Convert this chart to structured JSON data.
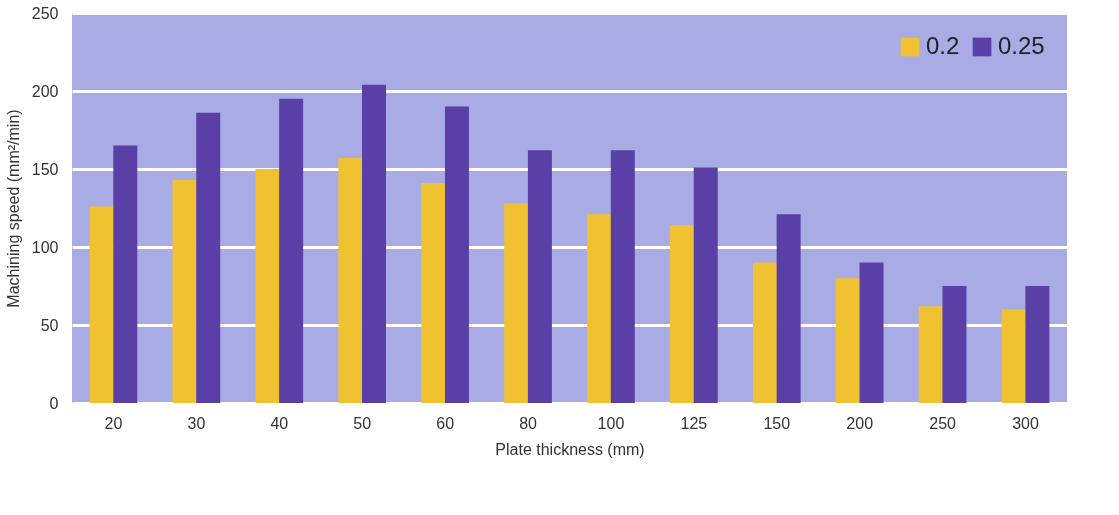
{
  "chart_data": {
    "type": "bar",
    "xlabel": "Plate thickness (mm)",
    "ylabel": "Machining speed (mm²/min)",
    "categories": [
      "20",
      "30",
      "40",
      "50",
      "60",
      "80",
      "100",
      "125",
      "150",
      "200",
      "250",
      "300"
    ],
    "series": [
      {
        "name": "0.2",
        "color": "#f0c232",
        "values": [
          126,
          143,
          150,
          157,
          141,
          128,
          121,
          114,
          90,
          80,
          62,
          60
        ]
      },
      {
        "name": "0.25",
        "color": "#5a3fa6",
        "values": [
          165,
          186,
          195,
          204,
          190,
          162,
          162,
          151,
          121,
          90,
          75,
          75
        ]
      }
    ],
    "ylim": [
      0,
      250
    ],
    "yticks": [
      0,
      50,
      100,
      150,
      200,
      250
    ],
    "grid": "y",
    "legend": "top right"
  }
}
